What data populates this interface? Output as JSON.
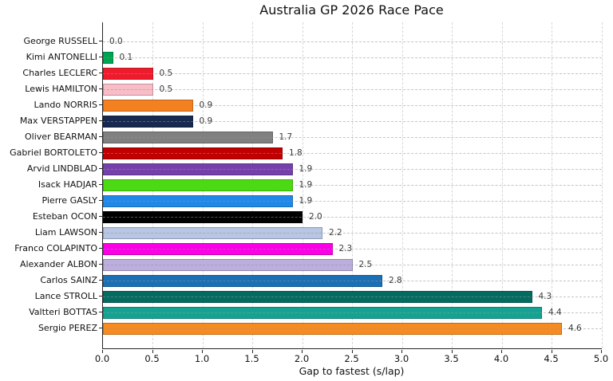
{
  "chart_data": {
    "type": "bar",
    "orientation": "horizontal",
    "title": "Australia GP 2026 Race Pace",
    "xlabel": "Gap to fastest (s/lap)",
    "xlim": [
      0.0,
      5.0
    ],
    "xticks": [
      0.0,
      0.5,
      1.0,
      1.5,
      2.0,
      2.5,
      3.0,
      3.5,
      4.0,
      4.5,
      5.0
    ],
    "grid": {
      "vertical": "dashed",
      "horizontal": "dashed"
    },
    "legend": null,
    "categories": [
      "George RUSSELL",
      "Kimi ANTONELLI",
      "Charles LECLERC",
      "Lewis HAMILTON",
      "Lando NORRIS",
      "Max VERSTAPPEN",
      "Oliver BEARMAN",
      "Gabriel BORTOLETO",
      "Arvid LINDBLAD",
      "Isack HADJAR",
      "Pierre GASLY",
      "Esteban OCON",
      "Liam LAWSON",
      "Franco COLAPINTO",
      "Alexander ALBON",
      "Carlos SAINZ",
      "Lance STROLL",
      "Valtteri BOTTAS",
      "Sergio PEREZ"
    ],
    "values": [
      0.0,
      0.1,
      0.5,
      0.5,
      0.9,
      0.9,
      1.7,
      1.8,
      1.9,
      1.9,
      1.9,
      2.0,
      2.2,
      2.3,
      2.5,
      2.8,
      4.3,
      4.4,
      4.6
    ],
    "value_labels": [
      "0.0",
      "0.1",
      "0.5",
      "0.5",
      "0.9",
      "0.9",
      "1.7",
      "1.8",
      "1.9",
      "1.9",
      "1.9",
      "2.0",
      "2.2",
      "2.3",
      "2.5",
      "2.8",
      "4.3",
      "4.4",
      "4.6"
    ],
    "bar_colors": [
      null,
      "#00a551",
      "#ef1a2b",
      "#f9bdc7",
      "#f58020",
      "#17294f",
      "#808080",
      "#c00000",
      "#7640ab",
      "#4cdb13",
      "#2089e8",
      "#000000",
      "#b8c6e4",
      "#fb00e6",
      "#bcaedd",
      "#1b6fb5",
      "#046b60",
      "#14a392",
      "#f78b1f"
    ],
    "text_color": "#111111",
    "spine_color": "#262626",
    "grid_color": "#d6d6d6"
  }
}
